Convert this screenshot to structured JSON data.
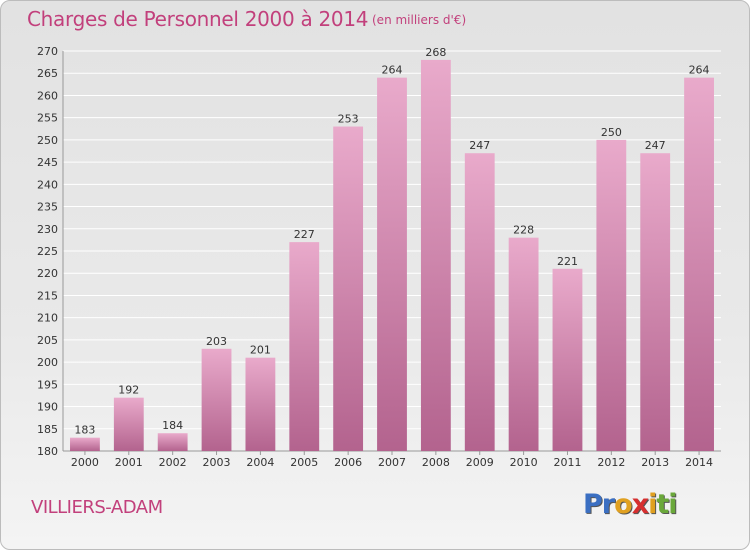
{
  "header": {
    "title": "Charges de Personnel 2000 à 2014",
    "subtitle": "(en milliers d'€)"
  },
  "footer": {
    "city": "VILLIERS-ADAM",
    "logo_letters": [
      {
        "ch": "P",
        "color": "#3b6fc2"
      },
      {
        "ch": "r",
        "color": "#3b6fc2"
      },
      {
        "ch": "o",
        "color": "#e0a020"
      },
      {
        "ch": "x",
        "color": "#d62f2f"
      },
      {
        "ch": "i",
        "color": "#e0a020"
      },
      {
        "ch": "t",
        "color": "#6aa83a"
      },
      {
        "ch": "i",
        "color": "#6aa83a"
      }
    ]
  },
  "chart_data": {
    "type": "bar",
    "title": "Charges de Personnel 2000 à 2014",
    "subtitle": "(en milliers d'€)",
    "categories": [
      "2000",
      "2001",
      "2002",
      "2003",
      "2004",
      "2005",
      "2006",
      "2007",
      "2008",
      "2009",
      "2010",
      "2011",
      "2012",
      "2013",
      "2014"
    ],
    "values": [
      183,
      192,
      184,
      203,
      201,
      227,
      253,
      264,
      268,
      247,
      228,
      221,
      250,
      247,
      264
    ],
    "ylim": [
      180,
      270
    ],
    "yticks": [
      180,
      185,
      190,
      195,
      200,
      205,
      210,
      215,
      220,
      225,
      230,
      235,
      240,
      245,
      250,
      255,
      260,
      265,
      270
    ],
    "grid": true,
    "bar_color": "#c0608f",
    "bar_color_light": "#e9aacb",
    "data_labels": true
  }
}
